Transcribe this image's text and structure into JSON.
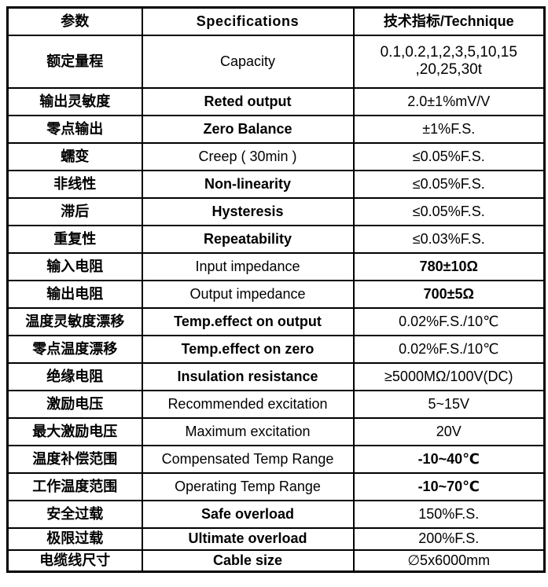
{
  "table": {
    "header": {
      "param": "参数",
      "spec": "Specifications",
      "value": "技术指标/Technique"
    },
    "rows": [
      {
        "param": "额定量程",
        "spec": "Capacity",
        "value": "0.1,0.2,1,2,3,5,10,15\n,20,25,30t"
      },
      {
        "param": "输出灵敏度",
        "spec": "Reted output",
        "value": "2.0±1%mV/V"
      },
      {
        "param": "零点输出",
        "spec": "Zero Balance",
        "value": "±1%F.S."
      },
      {
        "param": "蠕变",
        "spec": "Creep ( 30min )",
        "value": "≤0.05%F.S."
      },
      {
        "param": "非线性",
        "spec": "Non-linearity",
        "value": "≤0.05%F.S."
      },
      {
        "param": "滞后",
        "spec": "Hysteresis",
        "value": "≤0.05%F.S."
      },
      {
        "param": "重复性",
        "spec": "Repeatability",
        "value": "≤0.03%F.S."
      },
      {
        "param": "输入电阻",
        "spec": "Input impedance",
        "value": "780±10Ω"
      },
      {
        "param": "输出电阻",
        "spec": "Output impedance",
        "value": "700±5Ω"
      },
      {
        "param": "温度灵敏度漂移",
        "spec": "Temp.effect on output",
        "value": "0.02%F.S./10℃"
      },
      {
        "param": "零点温度漂移",
        "spec": "Temp.effect on zero",
        "value": "0.02%F.S./10℃"
      },
      {
        "param": "绝缘电阻",
        "spec": "Insulation resistance",
        "value": "≥5000MΩ/100V(DC)"
      },
      {
        "param": "激励电压",
        "spec": "Recommended excitation",
        "value": "5~15V"
      },
      {
        "param": "最大激励电压",
        "spec": "Maximum excitation",
        "value": "20V"
      },
      {
        "param": "温度补偿范围",
        "spec": "Compensated Temp Range",
        "value": "-10~40℃"
      },
      {
        "param": "工作温度范围",
        "spec": "Operating Temp Range",
        "value": "-10~70℃"
      },
      {
        "param": "安全过载",
        "spec": "Safe overload",
        "value": "150%F.S."
      },
      {
        "param": "极限过载",
        "spec": "Ultimate overload",
        "value": "200%F.S."
      },
      {
        "param": "电缆线尺寸",
        "spec": "Cable size",
        "value": "∅5x6000mm"
      }
    ]
  }
}
